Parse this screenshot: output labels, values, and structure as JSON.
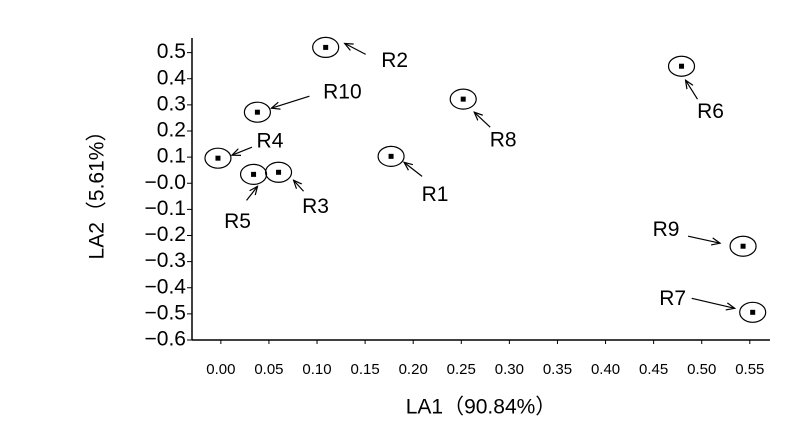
{
  "chart_data": {
    "type": "scatter",
    "x_label": "LA1（90.84%）",
    "y_label": "LA2（5.61%）",
    "xlim": [
      -0.03,
      0.571
    ],
    "ylim": [
      -0.6,
      0.556
    ],
    "xticks": [
      {
        "value": 0,
        "label": "0.00"
      },
      0.05,
      {
        "value": 0.1,
        "label": "0.10"
      },
      0.15,
      {
        "value": 0.2,
        "label": "0.20"
      },
      0.25,
      {
        "value": 0.3,
        "label": "0.30"
      },
      0.35,
      {
        "value": 0.4,
        "label": "0.40"
      },
      0.45,
      {
        "value": 0.5,
        "label": "0.50"
      },
      0.55
    ],
    "yticks": [
      0.5,
      0.4,
      0.3,
      0.2,
      0.1,
      {
        "value": 0,
        "label": "−0.0"
      },
      {
        "value": -0.1,
        "label": "−0.1"
      },
      {
        "value": -0.2,
        "label": "−0.2"
      },
      {
        "value": -0.3,
        "label": "−0.3"
      },
      {
        "value": -0.4,
        "label": "−0.4"
      },
      {
        "value": -0.5,
        "label": "−0.5"
      },
      {
        "value": -0.6,
        "label": "−0.6"
      }
    ],
    "series": [
      {
        "color": "#000000",
        "labels": [
          "R2",
          "R6",
          "R8",
          "R10",
          "R4",
          "R1",
          "R5",
          "R3",
          "R9",
          "R7"
        ],
        "x": [
          0.109,
          0.479,
          0.252,
          0.038,
          -0.003,
          0.177,
          0.034,
          0.06,
          0.543,
          0.553
        ],
        "values": [
          0.52,
          0.448,
          0.322,
          0.272,
          0.096,
          0.103,
          0.034,
          0.042,
          -0.241,
          -0.494
        ]
      }
    ]
  }
}
